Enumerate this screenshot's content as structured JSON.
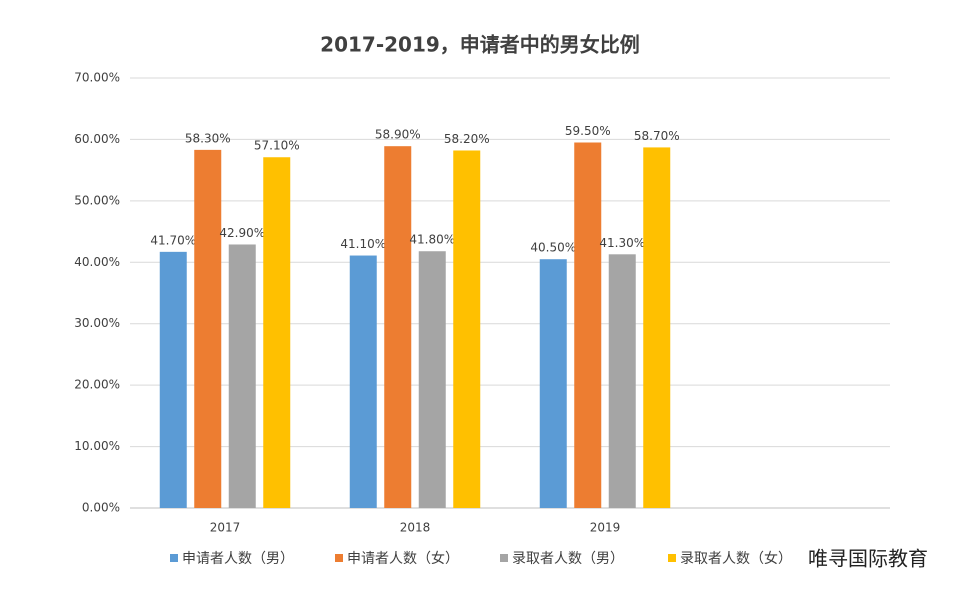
{
  "chart_data": {
    "type": "bar",
    "title": "2017-2019，申请者中的男女比例",
    "categories": [
      "2017",
      "2018",
      "2019",
      null
    ],
    "series": [
      {
        "name": "申请者人数（男）",
        "color": "#5b9bd5",
        "values": [
          41.7,
          41.1,
          40.5,
          null
        ],
        "value_labels": [
          "41.70%",
          "41.10%",
          "40.50%",
          null
        ]
      },
      {
        "name": "申请者人数（女）",
        "color": "#ed7d31",
        "values": [
          58.3,
          58.9,
          59.5,
          null
        ],
        "value_labels": [
          "58.30%",
          "58.90%",
          "59.50%",
          null
        ]
      },
      {
        "name": "录取者人数（男）",
        "color": "#a5a5a5",
        "values": [
          42.9,
          41.8,
          41.3,
          null
        ],
        "value_labels": [
          "42.90%",
          "41.80%",
          "41.30%",
          null
        ]
      },
      {
        "name": "录取者人数（女）",
        "color": "#ffc000",
        "values": [
          57.1,
          58.2,
          58.7,
          null
        ],
        "value_labels": [
          "57.10%",
          "58.20%",
          "58.70%",
          null
        ]
      }
    ],
    "ylim": [
      0,
      70
    ],
    "yticks": [
      {
        "value": 0,
        "label": "0.00%"
      },
      {
        "value": 10,
        "label": "10.00%"
      },
      {
        "value": 20,
        "label": "20.00%"
      },
      {
        "value": 30,
        "label": "30.00%"
      },
      {
        "value": 40,
        "label": "40.00%"
      },
      {
        "value": 50,
        "label": "50.00%"
      },
      {
        "value": 60,
        "label": "60.00%"
      },
      {
        "value": 70,
        "label": "70.00%"
      }
    ],
    "grid": true,
    "legend": "bottom",
    "watermark": "唯寻国际教育"
  }
}
